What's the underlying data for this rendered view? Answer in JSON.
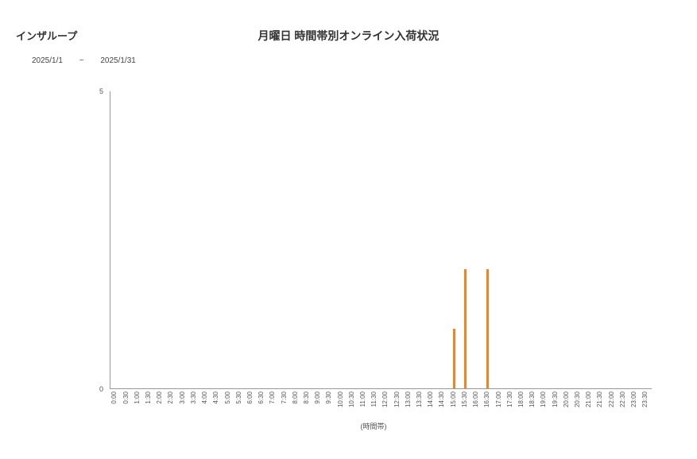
{
  "brand": "インザループ",
  "title": "月曜日 時間帯別オンライン入荷状況",
  "date_start": "2025/1/1",
  "date_sep": "~",
  "date_end": "2025/1/31",
  "chart": {
    "type": "bar",
    "bar_color": "#f58220",
    "axis_color": "#999999",
    "tick_font_color": "#555555",
    "background_color": "#ffffff",
    "ylim": [
      0,
      5
    ],
    "yticks": [
      0,
      5
    ],
    "xlabel": "(時間帯)",
    "tick_fontsize": 8,
    "label_fontsize": 9,
    "categories": [
      "0:00",
      "0:30",
      "1:00",
      "1:30",
      "2:00",
      "2:30",
      "3:00",
      "3:30",
      "4:00",
      "4:30",
      "5:00",
      "5:30",
      "6:00",
      "6:30",
      "7:00",
      "7:30",
      "8:00",
      "8:30",
      "9:00",
      "9:30",
      "10:00",
      "10:30",
      "11:00",
      "11:30",
      "12:00",
      "12:30",
      "13:00",
      "13:30",
      "14:00",
      "14:30",
      "15:00",
      "15:30",
      "16:00",
      "16:30",
      "17:00",
      "17:30",
      "18:00",
      "18:30",
      "19:00",
      "19:30",
      "20:00",
      "20:30",
      "21:00",
      "21:30",
      "22:00",
      "22:30",
      "23:00",
      "23:30"
    ],
    "values": [
      0,
      0,
      0,
      0,
      0,
      0,
      0,
      0,
      0,
      0,
      0,
      0,
      0,
      0,
      0,
      0,
      0,
      0,
      0,
      0,
      0,
      0,
      0,
      0,
      0,
      0,
      0,
      0,
      0,
      0,
      1,
      2,
      0,
      2,
      0,
      0,
      0,
      0,
      0,
      0,
      0,
      0,
      0,
      0,
      0,
      0,
      0,
      0
    ]
  }
}
